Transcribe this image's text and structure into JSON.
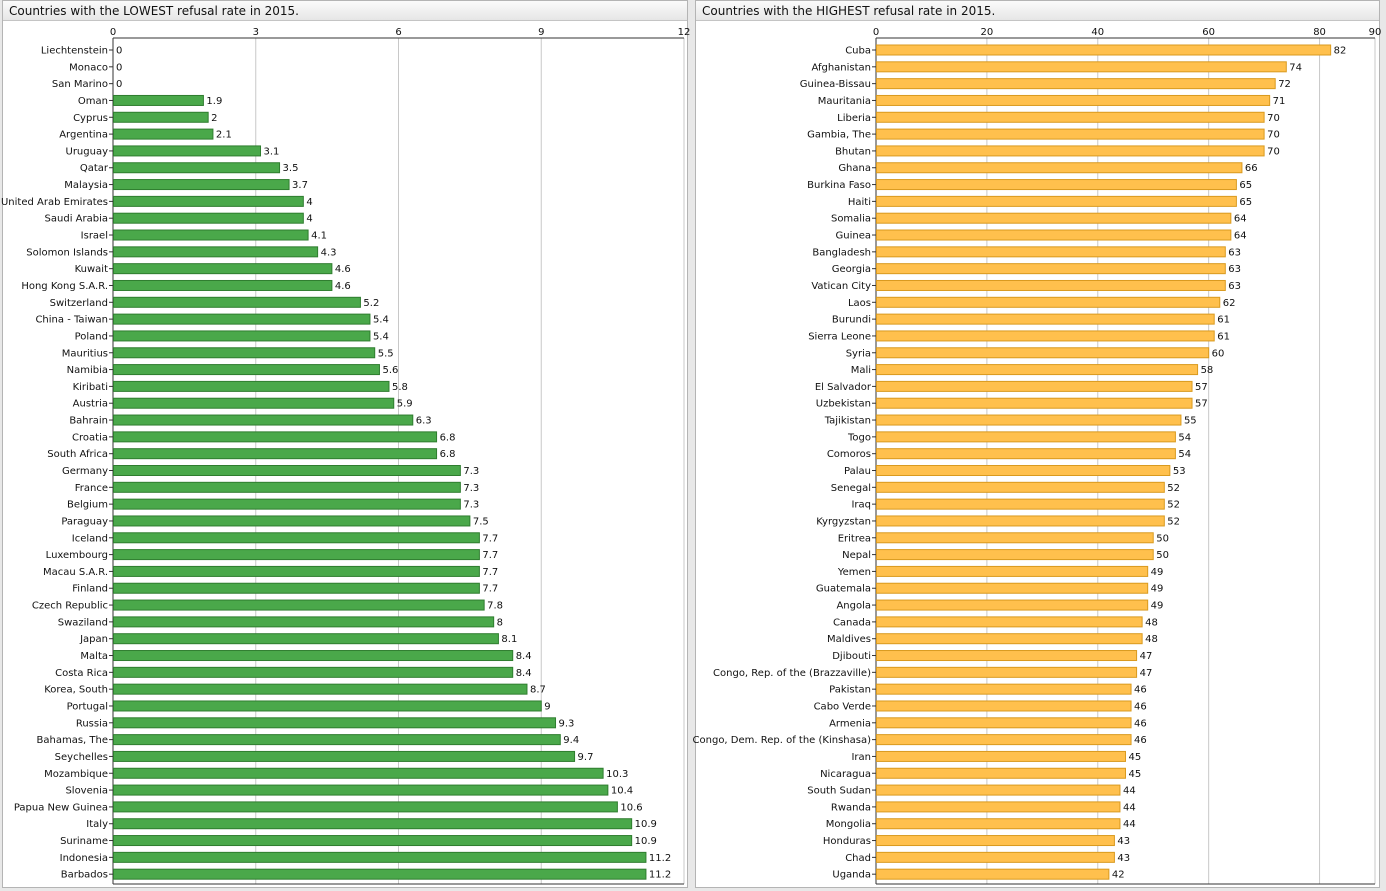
{
  "panels": [
    {
      "title": "Countries with the LOWEST refusal rate in 2015.",
      "chart_data": {
        "type": "bar",
        "orientation": "horizontal",
        "bar_color": "#4aa84a",
        "bar_stroke": "#2f7d2f",
        "xlim": [
          0,
          12
        ],
        "x_ticks": [
          0,
          3,
          6,
          9,
          12
        ],
        "grid": true,
        "categories": [
          "Liechtenstein",
          "Monaco",
          "San Marino",
          "Oman",
          "Cyprus",
          "Argentina",
          "Uruguay",
          "Qatar",
          "Malaysia",
          "United Arab Emirates",
          "Saudi Arabia",
          "Israel",
          "Solomon Islands",
          "Kuwait",
          "Hong Kong S.A.R.",
          "Switzerland",
          "China - Taiwan",
          "Poland",
          "Mauritius",
          "Namibia",
          "Kiribati",
          "Austria",
          "Bahrain",
          "Croatia",
          "South Africa",
          "Germany",
          "France",
          "Belgium",
          "Paraguay",
          "Iceland",
          "Luxembourg",
          "Macau S.A.R.",
          "Finland",
          "Czech Republic",
          "Swaziland",
          "Japan",
          "Malta",
          "Costa Rica",
          "Korea, South",
          "Portugal",
          "Russia",
          "Bahamas, The",
          "Seychelles",
          "Mozambique",
          "Slovenia",
          "Papua New Guinea",
          "Italy",
          "Suriname",
          "Indonesia",
          "Barbados"
        ],
        "values": [
          0,
          0,
          0,
          1.9,
          2,
          2.1,
          3.1,
          3.5,
          3.7,
          4,
          4,
          4.1,
          4.3,
          4.6,
          4.6,
          5.2,
          5.4,
          5.4,
          5.5,
          5.6,
          5.8,
          5.9,
          6.3,
          6.8,
          6.8,
          7.3,
          7.3,
          7.3,
          7.5,
          7.7,
          7.7,
          7.7,
          7.7,
          7.8,
          8,
          8.1,
          8.4,
          8.4,
          8.7,
          9,
          9.3,
          9.4,
          9.7,
          10.3,
          10.4,
          10.6,
          10.9,
          10.9,
          11.2,
          11.2
        ]
      }
    },
    {
      "title": "Countries with the HIGHEST refusal rate in 2015.",
      "chart_data": {
        "type": "bar",
        "orientation": "horizontal",
        "bar_color": "#ffc04d",
        "bar_stroke": "#d99a1f",
        "xlim": [
          0,
          90
        ],
        "x_ticks": [
          0,
          20,
          40,
          60,
          80,
          90
        ],
        "grid": true,
        "categories": [
          "Cuba",
          "Afghanistan",
          "Guinea-Bissau",
          "Mauritania",
          "Liberia",
          "Gambia, The",
          "Bhutan",
          "Ghana",
          "Burkina Faso",
          "Haiti",
          "Somalia",
          "Guinea",
          "Bangladesh",
          "Georgia",
          "Vatican City",
          "Laos",
          "Burundi",
          "Sierra Leone",
          "Syria",
          "Mali",
          "El Salvador",
          "Uzbekistan",
          "Tajikistan",
          "Togo",
          "Comoros",
          "Palau",
          "Senegal",
          "Iraq",
          "Kyrgyzstan",
          "Eritrea",
          "Nepal",
          "Yemen",
          "Guatemala",
          "Angola",
          "Canada",
          "Maldives",
          "Djibouti",
          "Congo, Rep. of the (Brazzaville)",
          "Pakistan",
          "Cabo Verde",
          "Armenia",
          "Congo, Dem. Rep. of the (Kinshasa)",
          "Iran",
          "Nicaragua",
          "South Sudan",
          "Rwanda",
          "Mongolia",
          "Honduras",
          "Chad",
          "Uganda"
        ],
        "values": [
          82,
          74,
          72,
          71,
          70,
          70,
          70,
          66,
          65,
          65,
          64,
          64,
          63,
          63,
          63,
          62,
          61,
          61,
          60,
          58,
          57,
          57,
          55,
          54,
          54,
          53,
          52,
          52,
          52,
          50,
          50,
          49,
          49,
          49,
          48,
          48,
          47,
          47,
          46,
          46,
          46,
          46,
          45,
          45,
          44,
          44,
          44,
          43,
          43,
          42
        ]
      }
    }
  ]
}
